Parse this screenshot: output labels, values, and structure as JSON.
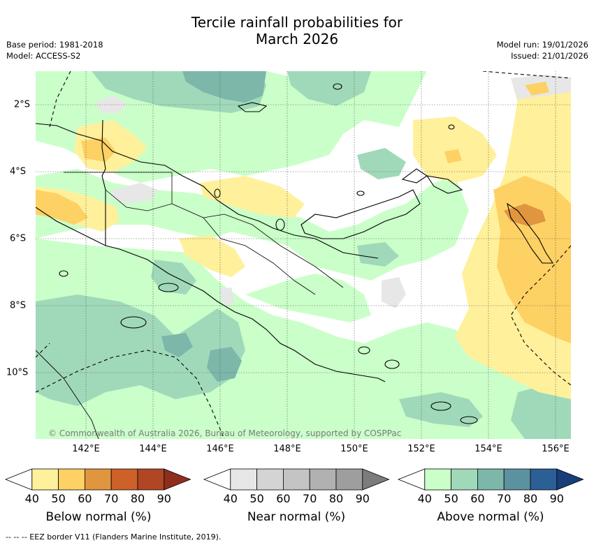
{
  "title_line1": "Tercile rainfall probabilities for",
  "title_line2": "March 2026",
  "base_period": "Base period: 1981-2018",
  "model": "Model: ACCESS-S2",
  "model_run": "Model run: 19/01/2026",
  "issued": "Issued: 21/01/2026",
  "lon_labels": [
    "142°E",
    "144°E",
    "146°E",
    "148°E",
    "150°E",
    "152°E",
    "154°E",
    "156°E"
  ],
  "lat_labels": [
    "2°S",
    "4°S",
    "6°S",
    "8°S",
    "10°S"
  ],
  "credit": "© Commonwealth of Australia 2026, Bureau of Meteorology, supported by COSPPac",
  "footer": "-- -- -- EEZ border V11 (Flanders Marine Institute, 2019).",
  "colorbars": [
    {
      "label": "Below normal (%)",
      "ticks": [
        "40",
        "50",
        "60",
        "70",
        "80",
        "90"
      ],
      "colors": [
        "#ffffff",
        "#fff09b",
        "#fdd163",
        "#e0953f",
        "#cd6129",
        "#b14625",
        "#8e2e1c"
      ]
    },
    {
      "label": "Near normal (%)",
      "ticks": [
        "40",
        "50",
        "60",
        "70",
        "80",
        "90"
      ],
      "colors": [
        "#ffffff",
        "#e7e7e7",
        "#d4d4d4",
        "#c4c4c4",
        "#b1b1b1",
        "#9e9e9e",
        "#7c7c7c"
      ]
    },
    {
      "label": "Above normal (%)",
      "ticks": [
        "40",
        "50",
        "60",
        "70",
        "80",
        "90"
      ],
      "colors": [
        "#ffffff",
        "#caffc9",
        "#a0d9b9",
        "#7cb7aa",
        "#5c91a0",
        "#2c5f96",
        "#173e79"
      ]
    }
  ]
}
